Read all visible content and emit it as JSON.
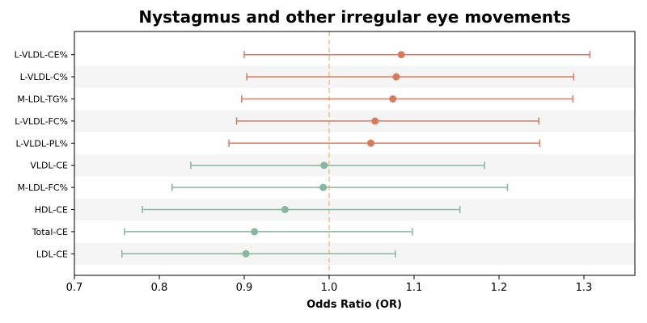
{
  "chart_data": {
    "type": "forest",
    "title": "Nystagmus and other irregular eye movements",
    "xlabel": "Odds Ratio (OR)",
    "ylabel": "",
    "xlim": [
      0.7,
      1.36
    ],
    "xticks": [
      "0.7",
      "0.8",
      "0.9",
      "1.0",
      "1.1",
      "1.2",
      "1.3"
    ],
    "reference_line": 1.0,
    "grid": false,
    "colors": {
      "risk": "#d9795e",
      "protective": "#86b7a0",
      "reference": "#f2c088",
      "band": "#f5f5f5"
    },
    "rows": [
      {
        "label": "L-VLDL-CE%",
        "or": 1.085,
        "lower": 0.9,
        "upper": 1.307,
        "group": "risk"
      },
      {
        "label": "L-VLDL-C%",
        "or": 1.079,
        "lower": 0.903,
        "upper": 1.288,
        "group": "risk"
      },
      {
        "label": "M-LDL-TG%",
        "or": 1.075,
        "lower": 0.897,
        "upper": 1.287,
        "group": "risk"
      },
      {
        "label": "L-VLDL-FC%",
        "or": 1.054,
        "lower": 0.891,
        "upper": 1.247,
        "group": "risk"
      },
      {
        "label": "L-VLDL-PL%",
        "or": 1.049,
        "lower": 0.882,
        "upper": 1.248,
        "group": "risk"
      },
      {
        "label": "VLDL-CE",
        "or": 0.994,
        "lower": 0.837,
        "upper": 1.183,
        "group": "protective"
      },
      {
        "label": "M-LDL-FC%",
        "or": 0.993,
        "lower": 0.815,
        "upper": 1.21,
        "group": "protective"
      },
      {
        "label": "HDL-CE",
        "or": 0.948,
        "lower": 0.78,
        "upper": 1.154,
        "group": "protective"
      },
      {
        "label": "Total-CE",
        "or": 0.912,
        "lower": 0.759,
        "upper": 1.098,
        "group": "protective"
      },
      {
        "label": "LDL-CE",
        "or": 0.902,
        "lower": 0.756,
        "upper": 1.078,
        "group": "protective"
      }
    ]
  }
}
